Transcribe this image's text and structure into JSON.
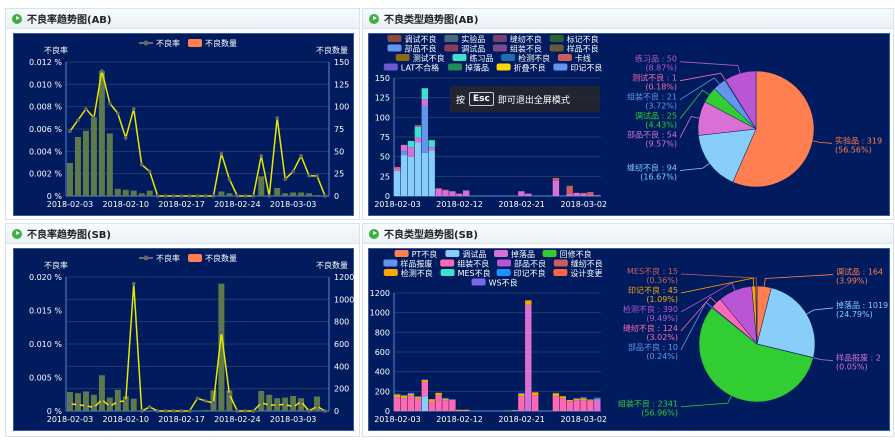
{
  "panels": {
    "rate_ab": {
      "title": "不良率趋势图(AB)"
    },
    "type_ab": {
      "title": "不良类型趋势图(AB)"
    },
    "rate_sb": {
      "title": "不良率趋势图(SB)"
    },
    "type_sb": {
      "title": "不良类型趋势图(SB)"
    }
  },
  "fullscreen_hint": {
    "prefix": "按",
    "key": "Esc",
    "suffix": "即可退出全屏模式"
  },
  "chart_data": [
    {
      "id": "rate_ab",
      "type": "bar+line",
      "legend": [
        "不良率",
        "不良数量"
      ],
      "ylabel_left": "不良率",
      "ylabel_right": "不良数量",
      "yticks_left": [
        "0 %",
        "0.002 %",
        "0.004 %",
        "0.006 %",
        "0.008 %",
        "0.010 %",
        "0.012 %"
      ],
      "ylim_left": [
        0,
        0.012
      ],
      "yticks_right": [
        "0",
        "25",
        "50",
        "75",
        "100",
        "125",
        "150"
      ],
      "ylim_right": [
        0,
        150
      ],
      "xticks": [
        "2018-02-03",
        "2018-02-10",
        "2018-02-17",
        "2018-02-24",
        "2018-03-03"
      ],
      "line": [
        0.0058,
        0.0068,
        0.0078,
        0.007,
        0.0112,
        0.0083,
        0.0074,
        0.0052,
        0.0078,
        0.0028,
        0.0022,
        0,
        0,
        0,
        0,
        0,
        0,
        0,
        0,
        0.0038,
        0.0015,
        0,
        0,
        0,
        0.0036,
        0,
        0.007,
        0.0015,
        0.0022,
        0.0036,
        0.0018,
        0.0018,
        0
      ],
      "bars": [
        37,
        66,
        73,
        88,
        140,
        70,
        8,
        7,
        6,
        3,
        6,
        0,
        0,
        0,
        0,
        0,
        0,
        0,
        0,
        5,
        3,
        0,
        0,
        0,
        22,
        0,
        9,
        3,
        4,
        4,
        3,
        1,
        0
      ],
      "colors": {
        "line": "#e8e800",
        "bars": "#5e7a4c",
        "legend_bar": "#ff7f50"
      }
    },
    {
      "id": "type_ab",
      "type": "stacked-bar",
      "ylim": [
        0,
        150
      ],
      "yticks": [
        "0",
        "25",
        "50",
        "75",
        "100",
        "125",
        "150"
      ],
      "xticks": [
        "2018-02-03",
        "2018-02-12",
        "2018-02-21",
        "2018-03-02"
      ],
      "legend": [
        {
          "name": "调试不良",
          "color": "#8b4a3c"
        },
        {
          "name": "实验品",
          "color": "#4a6a7a"
        },
        {
          "name": "缝纫不良",
          "color": "#7a3f6a"
        },
        {
          "name": "标记不良",
          "color": "#2f5e2f"
        },
        {
          "name": "部品不良",
          "color": "#6495ed"
        },
        {
          "name": "调试品",
          "color": "#8b3a5a"
        },
        {
          "name": "组装不良",
          "color": "#7a4a8a"
        },
        {
          "name": "样品不良",
          "color": "#6a5a3a"
        },
        {
          "name": "测试不良",
          "color": "#8b6914"
        },
        {
          "name": "练习品",
          "color": "#40e0d0"
        },
        {
          "name": "检测不良",
          "color": "#1e6fb0"
        },
        {
          "name": "卡线",
          "color": "#cd5c5c"
        },
        {
          "name": "LAT不合格",
          "color": "#6a5acd"
        },
        {
          "name": "掉落品",
          "color": "#1f8a5a"
        },
        {
          "name": "折叠不良",
          "color": "#ffd700"
        },
        {
          "name": "印记不良",
          "color": "#6495ed"
        }
      ],
      "series": [
        {
          "color": "#87cefa",
          "values": [
            32,
            52,
            50,
            68,
            55,
            58,
            0,
            0,
            0,
            0,
            0,
            0,
            0,
            0,
            0,
            0,
            0,
            0,
            0,
            0,
            0,
            0,
            0,
            0,
            0,
            0,
            0,
            0,
            0,
            0
          ]
        },
        {
          "color": "#6495ed",
          "values": [
            0,
            5,
            0,
            0,
            60,
            0,
            0,
            0,
            0,
            0,
            0,
            0,
            0,
            0,
            0,
            0,
            0,
            0,
            0,
            0,
            0,
            0,
            0,
            0,
            0,
            0,
            0,
            0,
            0,
            0
          ]
        },
        {
          "color": "#da70d6",
          "values": [
            3,
            8,
            12,
            6,
            8,
            4,
            9,
            7,
            6,
            3,
            7,
            0,
            0,
            0,
            0,
            0,
            0,
            0,
            6,
            3,
            0,
            0,
            0,
            20,
            0,
            3,
            4,
            3,
            2,
            1
          ]
        },
        {
          "color": "#40e0d0",
          "values": [
            0,
            0,
            8,
            14,
            14,
            9,
            0,
            0,
            0,
            0,
            0,
            0,
            0,
            0,
            0,
            0,
            0,
            0,
            0,
            0,
            0,
            0,
            0,
            0,
            0,
            0,
            0,
            0,
            0,
            0
          ]
        },
        {
          "color": "#cd5c5c",
          "values": [
            2,
            0,
            0,
            2,
            0,
            0,
            1,
            1,
            0,
            0,
            0,
            0,
            0,
            0,
            0,
            0,
            0,
            0,
            0,
            0,
            0,
            0,
            0,
            3,
            0,
            10,
            0,
            1,
            3,
            0
          ]
        }
      ]
    },
    {
      "id": "pie_ab",
      "type": "pie",
      "slices": [
        {
          "name": "实验品",
          "value": 319,
          "pct": "56.56%",
          "color": "#ff7f50"
        },
        {
          "name": "缝纫不良",
          "value": 94,
          "pct": "16.67%",
          "color": "#87cefa"
        },
        {
          "name": "部品不良",
          "value": 54,
          "pct": "9.57%",
          "color": "#da70d6"
        },
        {
          "name": "调试品",
          "value": 25,
          "pct": "4.43%",
          "color": "#32cd32"
        },
        {
          "name": "组装不良",
          "value": 21,
          "pct": "3.72%",
          "color": "#6495ed"
        },
        {
          "name": "测试不良",
          "value": 1,
          "pct": "0.18%",
          "color": "#ff69b4"
        },
        {
          "name": "练习品",
          "value": 50,
          "pct": "8.87%",
          "color": "#ba55d3"
        }
      ]
    },
    {
      "id": "rate_sb",
      "type": "bar+line",
      "legend": [
        "不良率",
        "不良数量"
      ],
      "ylabel_left": "不良率",
      "ylabel_right": "不良数量",
      "yticks_left": [
        "0 %",
        "0.005 %",
        "0.010 %",
        "0.015 %",
        "0.020 %"
      ],
      "ylim_left": [
        0,
        0.02
      ],
      "yticks_right": [
        "0",
        "200",
        "400",
        "600",
        "800",
        "1000",
        "1200"
      ],
      "ylim_right": [
        0,
        1200
      ],
      "xticks": [
        "2018-02-03",
        "2018-02-10",
        "2018-02-17",
        "2018-02-24",
        "2018-03-03"
      ],
      "line": [
        0.0011,
        0.0009,
        0.0008,
        0.0005,
        0.0017,
        0.0007,
        0.0014,
        0.0015,
        0.019,
        0,
        0.0006,
        0,
        0,
        0,
        0,
        0,
        0.0019,
        0.0015,
        0.0012,
        0.0117,
        0.0025,
        0,
        0,
        0,
        0.0012,
        0.0009,
        0.0009,
        0.001,
        0.0006,
        0.0014,
        0,
        0.0007,
        0
      ],
      "bars": [
        170,
        160,
        175,
        145,
        320,
        120,
        190,
        130,
        110,
        0,
        0,
        0,
        0,
        0,
        0,
        0,
        5,
        8,
        185,
        1140,
        185,
        0,
        0,
        0,
        180,
        145,
        115,
        120,
        135,
        115,
        20,
        130,
        0
      ],
      "colors": {
        "line": "#e8e800",
        "bars": "#5e7a4c",
        "legend_bar": "#ff7f50"
      }
    },
    {
      "id": "type_sb",
      "type": "stacked-bar",
      "ylim": [
        0,
        1200
      ],
      "yticks": [
        "0",
        "200",
        "400",
        "600",
        "800",
        "1000",
        "1200"
      ],
      "xticks": [
        "2018-02-03",
        "2018-02-12",
        "2018-02-21",
        "2018-03-02"
      ],
      "legend": [
        {
          "name": "PT不良",
          "color": "#ff7f50"
        },
        {
          "name": "调试品",
          "color": "#87cefa"
        },
        {
          "name": "掉落品",
          "color": "#da70d6"
        },
        {
          "name": "回修不良",
          "color": "#32cd32"
        },
        {
          "name": "样品报废",
          "color": "#6495ed"
        },
        {
          "name": "组装不良",
          "color": "#ff69b4"
        },
        {
          "name": "部品不良",
          "color": "#ba55d3"
        },
        {
          "name": "缝纫不良",
          "color": "#cd5c5c"
        },
        {
          "name": "检测不良",
          "color": "#ffa500"
        },
        {
          "name": "MES不良",
          "color": "#40e0d0"
        },
        {
          "name": "印记不良",
          "color": "#1e90ff"
        },
        {
          "name": "设计变更",
          "color": "#ff6347"
        },
        {
          "name": "WS不良",
          "color": "#7b68ee"
        }
      ],
      "series": [
        {
          "color": "#87cefa",
          "values": [
            0,
            0,
            0,
            0,
            150,
            0,
            0,
            0,
            0,
            0,
            0,
            0,
            0,
            0,
            0,
            0,
            0,
            0,
            0,
            0,
            0,
            0,
            0,
            0,
            0,
            0,
            0,
            0,
            0,
            0
          ]
        },
        {
          "color": "#ff69b4",
          "values": [
            140,
            130,
            160,
            125,
            145,
            95,
            160,
            110,
            115,
            5,
            5,
            0,
            0,
            0,
            0,
            0,
            0,
            0,
            150,
            0,
            160,
            0,
            0,
            150,
            130,
            100,
            110,
            110,
            105,
            20
          ]
        },
        {
          "color": "#da70d6",
          "values": [
            0,
            0,
            0,
            0,
            0,
            0,
            0,
            0,
            0,
            0,
            0,
            0,
            0,
            0,
            0,
            0,
            0,
            0,
            0,
            1080,
            0,
            0,
            0,
            0,
            0,
            0,
            0,
            0,
            0,
            100
          ]
        },
        {
          "color": "#ffa500",
          "values": [
            25,
            25,
            15,
            20,
            20,
            25,
            25,
            15,
            0,
            8,
            8,
            0,
            0,
            0,
            0,
            0,
            5,
            5,
            25,
            45,
            30,
            0,
            0,
            30,
            20,
            12,
            15,
            20,
            10,
            5
          ]
        },
        {
          "color": "#1e90ff",
          "values": [
            10,
            8,
            10,
            5,
            5,
            0,
            0,
            8,
            5,
            0,
            0,
            0,
            0,
            0,
            0,
            0,
            0,
            5,
            10,
            0,
            0,
            0,
            0,
            5,
            0,
            0,
            5,
            10,
            5,
            10
          ]
        }
      ]
    },
    {
      "id": "pie_sb",
      "type": "pie",
      "slices": [
        {
          "name": "调试品",
          "value": 164,
          "pct": "3.99%",
          "color": "#ff7f50"
        },
        {
          "name": "掉落品",
          "value": 1019,
          "pct": "24.79%",
          "color": "#87cefa"
        },
        {
          "name": "样品报废",
          "value": 2,
          "pct": "0.05%",
          "color": "#da70d6"
        },
        {
          "name": "组装不良",
          "value": 2341,
          "pct": "56.96%",
          "color": "#32cd32"
        },
        {
          "name": "部品不良",
          "value": 10,
          "pct": "0.24%",
          "color": "#6495ed"
        },
        {
          "name": "缝纫不良",
          "value": 124,
          "pct": "3.02%",
          "color": "#ff69b4"
        },
        {
          "name": "检测不良",
          "value": 390,
          "pct": "9.49%",
          "color": "#ba55d3"
        },
        {
          "name": "印记不良",
          "value": 45,
          "pct": "1.09%",
          "color": "#ffa500"
        },
        {
          "name": "MES不良",
          "value": 15,
          "pct": "0.36%",
          "color": "#cd5c5c"
        }
      ]
    }
  ]
}
